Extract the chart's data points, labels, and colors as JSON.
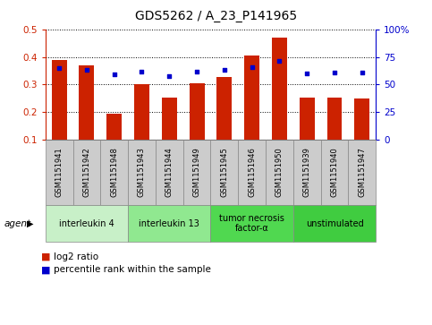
{
  "title": "GDS5262 / A_23_P141965",
  "samples": [
    "GSM1151941",
    "GSM1151942",
    "GSM1151948",
    "GSM1151943",
    "GSM1151944",
    "GSM1151949",
    "GSM1151945",
    "GSM1151946",
    "GSM1151950",
    "GSM1151939",
    "GSM1151940",
    "GSM1151947"
  ],
  "log2_ratio": [
    0.39,
    0.37,
    0.193,
    0.3,
    0.253,
    0.305,
    0.328,
    0.405,
    0.47,
    0.253,
    0.253,
    0.25
  ],
  "percentile_rank": [
    65,
    63,
    59,
    62,
    58,
    62,
    63,
    66,
    71,
    60,
    61,
    61
  ],
  "ylim_left": [
    0.1,
    0.5
  ],
  "ylim_right": [
    0,
    100
  ],
  "yticks_left": [
    0.1,
    0.2,
    0.3,
    0.4,
    0.5
  ],
  "yticks_right": [
    0,
    25,
    50,
    75,
    100
  ],
  "ytick_labels_right": [
    "0",
    "25",
    "50",
    "75",
    "100%"
  ],
  "groups": [
    {
      "label": "interleukin 4",
      "indices": [
        0,
        1,
        2
      ],
      "color": "#c8f0c8"
    },
    {
      "label": "interleukin 13",
      "indices": [
        3,
        4,
        5
      ],
      "color": "#90e890"
    },
    {
      "label": "tumor necrosis\nfactor-α",
      "indices": [
        6,
        7,
        8
      ],
      "color": "#50d850"
    },
    {
      "label": "unstimulated",
      "indices": [
        9,
        10,
        11
      ],
      "color": "#40cc40"
    }
  ],
  "bar_color": "#cc2200",
  "dot_color": "#0000cc",
  "bar_bottom": 0.1,
  "left_axis_color": "#cc2200",
  "right_axis_color": "#0000cc",
  "agent_label": "agent",
  "legend_log2": "log2 ratio",
  "legend_pct": "percentile rank within the sample",
  "title_fontsize": 10,
  "tick_fontsize": 7.5,
  "sample_label_fontsize": 6,
  "group_label_fontsize": 7,
  "legend_fontsize": 7.5
}
